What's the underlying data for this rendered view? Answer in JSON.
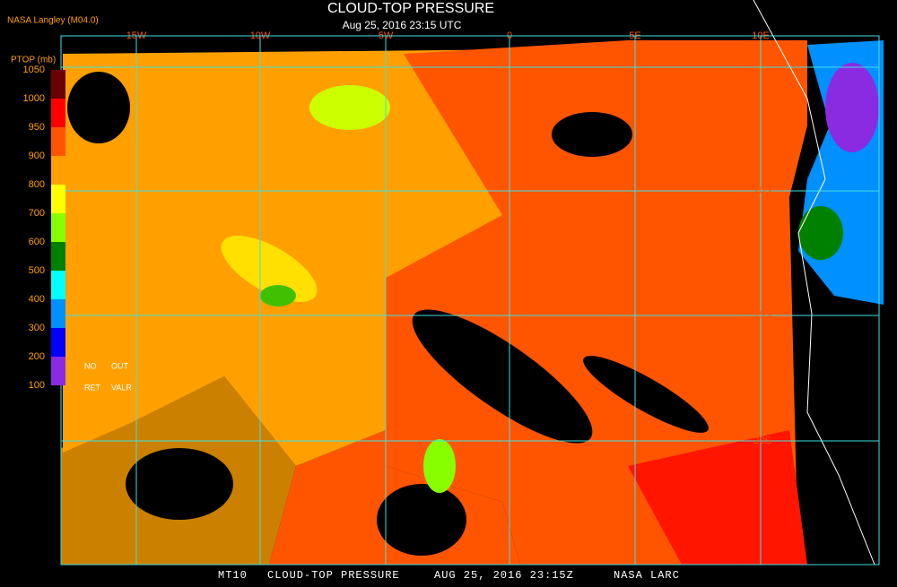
{
  "header": {
    "credit": "NASA Langley (M04.0)",
    "title": "CLOUD-TOP PRESSURE",
    "subtitle": "Aug 25, 2016 23:15 UTC"
  },
  "legend": {
    "title": "PTOP (mb)",
    "ticks": [
      1050,
      1000,
      950,
      900,
      800,
      700,
      600,
      500,
      400,
      300,
      200,
      100
    ],
    "colors": [
      "#6b0000",
      "#ff0000",
      "#ff5500",
      "#ffa000",
      "#ffff00",
      "#88ff00",
      "#008000",
      "#00ffff",
      "#0090ff",
      "#0000ff",
      "#8a2be2"
    ],
    "notes": [
      "NO",
      "OUT",
      "RET",
      "VALR"
    ]
  },
  "map": {
    "longitudes": [
      "15W",
      "10W",
      "5W",
      "0",
      "5E",
      "10E"
    ],
    "latitudes": [
      "10S",
      "15S",
      "20S"
    ]
  },
  "footer": [
    "MT10",
    "CLOUD-TOP PRESSURE",
    "AUG 25, 2016 23:15Z",
    "NASA LARC"
  ]
}
